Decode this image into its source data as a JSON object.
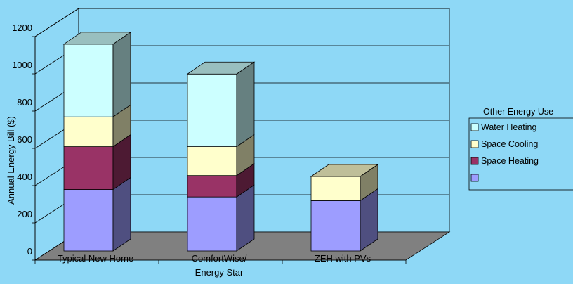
{
  "chart_data": {
    "type": "bar",
    "stacked": true,
    "three_d": true,
    "categories": [
      "Typical New Home",
      "ComfortWise/\nEnergy Star",
      "ZEH with PVs"
    ],
    "ylabel": "Annual Energy Bill ($)",
    "ylim": [
      0,
      1200
    ],
    "yticks": [
      0,
      200,
      400,
      600,
      800,
      1000,
      1200
    ],
    "grid": true,
    "legend_position": "right",
    "legend_title": "Other Energy Use",
    "series": [
      {
        "name": "",
        "values": [
          330,
          290,
          270
        ],
        "color": "#9d9dff"
      },
      {
        "name": "Space Heating",
        "values": [
          230,
          115,
          0
        ],
        "color": "#993366"
      },
      {
        "name": "Space Cooling",
        "values": [
          160,
          155,
          130
        ],
        "color": "#ffffcc"
      },
      {
        "name": "Water Heating",
        "values": [
          390,
          390,
          0
        ],
        "color": "#ccffff"
      }
    ],
    "colors": {
      "background": "#8ed8f6",
      "floor": "#808080",
      "outline": "#000000"
    }
  }
}
